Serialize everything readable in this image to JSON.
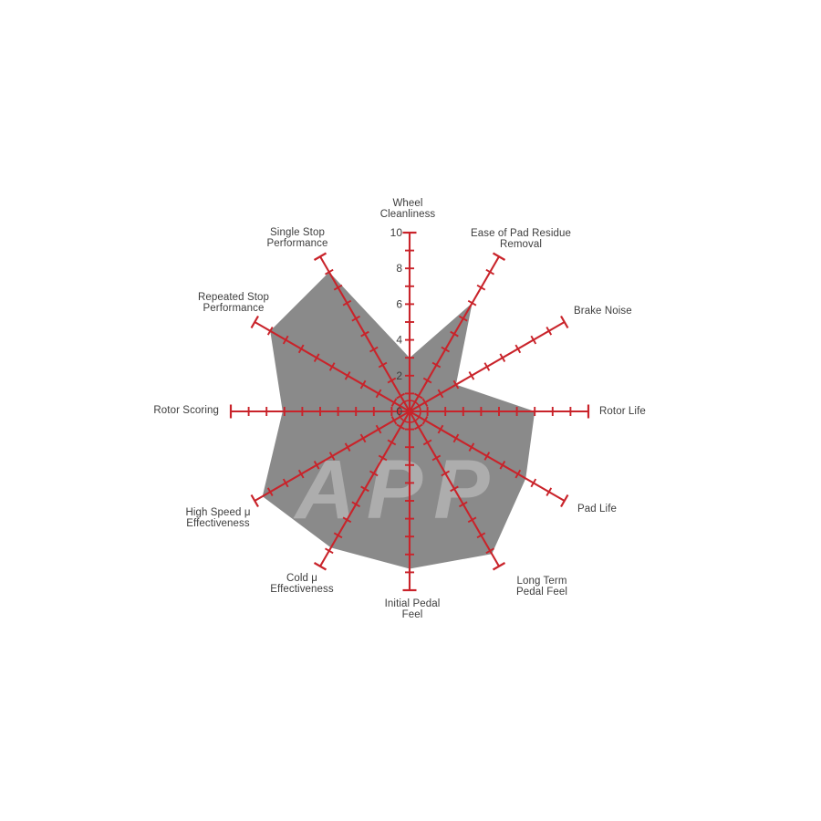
{
  "watermark": {
    "text": "APP"
  },
  "chart_data": {
    "type": "radar",
    "title": "",
    "scale": {
      "min": 0,
      "max": 10,
      "tick_step": 1,
      "label_step": 2,
      "tick_labels": [
        "0",
        "2",
        "4",
        "6",
        "8",
        "10"
      ]
    },
    "layout_hints": {
      "axes_start_at_top": true,
      "direction": "clockwise",
      "grid": "ticks-only",
      "legend": "none"
    },
    "axes": [
      {
        "label": "Wheel Cleanliness",
        "label_lines": [
          "Wheel",
          "Cleanliness"
        ],
        "value": 3
      },
      {
        "label": "Ease of Pad Residue Removal",
        "label_lines": [
          "Ease of Pad Residue",
          "Removal"
        ],
        "value": 7
      },
      {
        "label": "Brake Noise",
        "label_lines": [
          "Brake Noise"
        ],
        "value": 3
      },
      {
        "label": "Rotor Life",
        "label_lines": [
          "Rotor Life"
        ],
        "value": 7
      },
      {
        "label": "Pad Life",
        "label_lines": [
          "Pad Life"
        ],
        "value": 7.5
      },
      {
        "label": "Long Term Pedal Feel",
        "label_lines": [
          "Long Term",
          "Pedal Feel"
        ],
        "value": 9.2
      },
      {
        "label": "Initial Pedal Feel",
        "label_lines": [
          "Initial Pedal",
          "Feel"
        ],
        "value": 8.8
      },
      {
        "label": "Cold μ Effectiveness",
        "label_lines": [
          "Cold μ",
          "Effectiveness"
        ],
        "value": 8.8
      },
      {
        "label": "High Speed μ Effectiveness",
        "label_lines": [
          "High Speed μ",
          "Effectiveness"
        ],
        "value": 9.5
      },
      {
        "label": "Rotor Scoring",
        "label_lines": [
          "Rotor Scoring"
        ],
        "value": 7.1
      },
      {
        "label": "Repeated Stop Performance",
        "label_lines": [
          "Repeated Stop",
          "Performance"
        ],
        "value": 9
      },
      {
        "label": "Single Stop Performance",
        "label_lines": [
          "Single Stop",
          "Performance"
        ],
        "value": 9
      }
    ],
    "colors": {
      "axis": "#c9232a",
      "fill": "#8a8a8a",
      "label": "#3d3d3d"
    }
  }
}
